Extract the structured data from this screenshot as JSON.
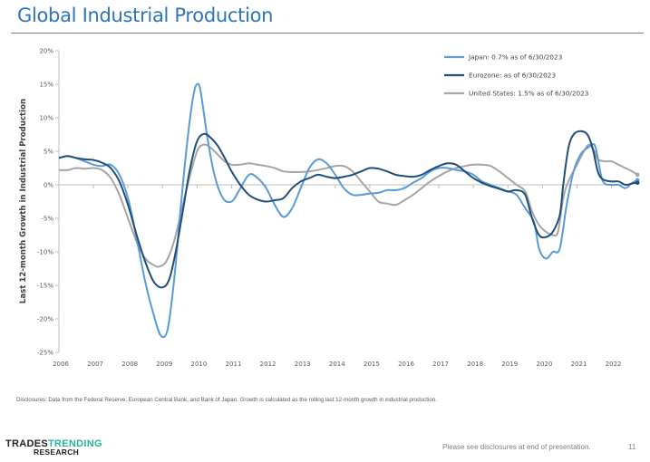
{
  "page": {
    "title": "Global Industrial Production",
    "disclosure": "Disclosures: Data from the Federal Reserve, European Central Bank, and Bank of Japan. Growth is calculated as the rolling last 12-month growth in industrial production.",
    "footer": "Please see disclosures at end of presentation.",
    "page_number": "11",
    "logo": {
      "part1": "TRADES",
      "part2": "TRENDING",
      "part3": "RESEARCH"
    }
  },
  "chart_data": {
    "type": "line",
    "title": "Global Industrial Production",
    "xlabel": "",
    "ylabel": "Last 12-month Growth in Industrial Production",
    "ylim": [
      -25,
      20
    ],
    "xlim": [
      2006,
      2022.5
    ],
    "yticks": [
      20,
      15,
      10,
      5,
      0,
      -5,
      -10,
      -15,
      -20,
      -25
    ],
    "ytick_labels": [
      "20%",
      "15%",
      "10%",
      "5%",
      "0%",
      "-5%",
      "-10%",
      "-15%",
      "-20%",
      "-25%"
    ],
    "xtick_labels": [
      "2006",
      "2007",
      "2008",
      "2009",
      "2010",
      "2011",
      "2012",
      "2013",
      "2014",
      "2015",
      "2016",
      "2017",
      "2018",
      "2019",
      "2020",
      "2021",
      "2022"
    ],
    "legend_position": "top-right",
    "grid": false,
    "series": [
      {
        "name": "Japan: 0.7% as of 6/30/2023",
        "color": "#5b9bd5",
        "points": [
          [
            2006,
            4.0
          ],
          [
            2006.25,
            4.3
          ],
          [
            2006.5,
            4.0
          ],
          [
            2006.75,
            3.5
          ],
          [
            2007,
            3.0
          ],
          [
            2007.25,
            2.8
          ],
          [
            2007.5,
            3.0
          ],
          [
            2007.75,
            1.5
          ],
          [
            2008,
            -2.0
          ],
          [
            2008.25,
            -8.0
          ],
          [
            2008.5,
            -14.5
          ],
          [
            2008.75,
            -19.5
          ],
          [
            2008.95,
            -22.5
          ],
          [
            2009.15,
            -21.5
          ],
          [
            2009.35,
            -13.5
          ],
          [
            2009.55,
            -2.0
          ],
          [
            2009.75,
            8.0
          ],
          [
            2009.9,
            13.5
          ],
          [
            2010.0,
            15.0
          ],
          [
            2010.1,
            14.0
          ],
          [
            2010.3,
            7.0
          ],
          [
            2010.5,
            1.5
          ],
          [
            2010.75,
            -2.0
          ],
          [
            2011.0,
            -2.5
          ],
          [
            2011.2,
            -1.0
          ],
          [
            2011.5,
            1.5
          ],
          [
            2011.75,
            1.0
          ],
          [
            2012.0,
            -0.5
          ],
          [
            2012.25,
            -3.0
          ],
          [
            2012.5,
            -4.8
          ],
          [
            2012.75,
            -3.5
          ],
          [
            2013.0,
            -0.5
          ],
          [
            2013.25,
            2.5
          ],
          [
            2013.5,
            3.8
          ],
          [
            2013.75,
            3.2
          ],
          [
            2014.0,
            1.5
          ],
          [
            2014.25,
            -0.5
          ],
          [
            2014.5,
            -1.5
          ],
          [
            2014.75,
            -1.5
          ],
          [
            2015.0,
            -1.3
          ],
          [
            2015.25,
            -1.2
          ],
          [
            2015.5,
            -0.8
          ],
          [
            2015.75,
            -0.8
          ],
          [
            2016.0,
            -0.5
          ],
          [
            2016.25,
            0.3
          ],
          [
            2016.5,
            1.0
          ],
          [
            2016.75,
            2.0
          ],
          [
            2017.0,
            2.5
          ],
          [
            2017.25,
            2.5
          ],
          [
            2017.5,
            2.2
          ],
          [
            2017.75,
            2.0
          ],
          [
            2018.0,
            1.5
          ],
          [
            2018.25,
            0.5
          ],
          [
            2018.5,
            0.0
          ],
          [
            2018.75,
            -0.5
          ],
          [
            2019.0,
            -1.0
          ],
          [
            2019.25,
            -1.5
          ],
          [
            2019.5,
            -3.5
          ],
          [
            2019.75,
            -5.5
          ],
          [
            2019.9,
            -9.5
          ],
          [
            2020.1,
            -11.0
          ],
          [
            2020.3,
            -10.0
          ],
          [
            2020.5,
            -9.5
          ],
          [
            2020.7,
            -3.0
          ],
          [
            2020.9,
            2.0
          ],
          [
            2021.1,
            4.5
          ],
          [
            2021.3,
            5.5
          ],
          [
            2021.5,
            6.0
          ],
          [
            2021.6,
            4.0
          ],
          [
            2021.75,
            0.5
          ],
          [
            2022.0,
            0.0
          ],
          [
            2022.2,
            0.0
          ],
          [
            2022.4,
            -0.5
          ],
          [
            2022.6,
            0.3
          ],
          [
            2022.75,
            0.7
          ]
        ]
      },
      {
        "name": "Eurozone:  as of 6/30/2023",
        "color": "#1f4e79",
        "points": [
          [
            2006,
            4.0
          ],
          [
            2006.25,
            4.3
          ],
          [
            2006.5,
            4.0
          ],
          [
            2006.75,
            3.8
          ],
          [
            2007,
            3.7
          ],
          [
            2007.25,
            3.3
          ],
          [
            2007.5,
            2.5
          ],
          [
            2007.75,
            0.5
          ],
          [
            2008,
            -3.0
          ],
          [
            2008.25,
            -7.5
          ],
          [
            2008.5,
            -11.5
          ],
          [
            2008.75,
            -14.5
          ],
          [
            2009.0,
            -15.3
          ],
          [
            2009.2,
            -14.0
          ],
          [
            2009.4,
            -9.5
          ],
          [
            2009.6,
            -3.5
          ],
          [
            2009.8,
            2.5
          ],
          [
            2010.0,
            6.5
          ],
          [
            2010.2,
            7.6
          ],
          [
            2010.4,
            7.0
          ],
          [
            2010.6,
            5.8
          ],
          [
            2010.8,
            4.0
          ],
          [
            2011.0,
            2.0
          ],
          [
            2011.25,
            0.0
          ],
          [
            2011.5,
            -1.5
          ],
          [
            2011.75,
            -2.2
          ],
          [
            2012.0,
            -2.5
          ],
          [
            2012.25,
            -2.3
          ],
          [
            2012.5,
            -2.0
          ],
          [
            2012.75,
            -0.5
          ],
          [
            2013.0,
            0.5
          ],
          [
            2013.25,
            1.0
          ],
          [
            2013.5,
            1.5
          ],
          [
            2013.75,
            1.2
          ],
          [
            2014.0,
            1.0
          ],
          [
            2014.25,
            1.2
          ],
          [
            2014.5,
            1.5
          ],
          [
            2014.75,
            2.0
          ],
          [
            2015.0,
            2.5
          ],
          [
            2015.25,
            2.4
          ],
          [
            2015.5,
            2.0
          ],
          [
            2015.75,
            1.5
          ],
          [
            2016.0,
            1.3
          ],
          [
            2016.25,
            1.2
          ],
          [
            2016.5,
            1.5
          ],
          [
            2016.75,
            2.2
          ],
          [
            2017.0,
            2.8
          ],
          [
            2017.25,
            3.2
          ],
          [
            2017.5,
            3.0
          ],
          [
            2017.75,
            2.0
          ],
          [
            2018.0,
            1.0
          ],
          [
            2018.25,
            0.3
          ],
          [
            2018.5,
            -0.2
          ],
          [
            2018.75,
            -0.6
          ],
          [
            2019.0,
            -1.0
          ],
          [
            2019.25,
            -0.8
          ],
          [
            2019.5,
            -1.5
          ],
          [
            2019.7,
            -5.0
          ],
          [
            2019.9,
            -7.5
          ],
          [
            2020.1,
            -7.8
          ],
          [
            2020.3,
            -7.0
          ],
          [
            2020.5,
            -4.5
          ],
          [
            2020.6,
            0.0
          ],
          [
            2020.75,
            5.5
          ],
          [
            2020.9,
            7.5
          ],
          [
            2021.1,
            8.0
          ],
          [
            2021.3,
            7.5
          ],
          [
            2021.45,
            5.5
          ],
          [
            2021.6,
            2.0
          ],
          [
            2021.75,
            0.8
          ],
          [
            2022.0,
            0.5
          ],
          [
            2022.2,
            0.5
          ],
          [
            2022.4,
            0.0
          ],
          [
            2022.6,
            0.2
          ],
          [
            2022.75,
            0.3
          ]
        ]
      },
      {
        "name": "United States: 1.5% as of 6/30/2023",
        "color": "#a5a5a5",
        "points": [
          [
            2006,
            2.2
          ],
          [
            2006.25,
            2.2
          ],
          [
            2006.5,
            2.5
          ],
          [
            2006.75,
            2.4
          ],
          [
            2007,
            2.5
          ],
          [
            2007.25,
            2.2
          ],
          [
            2007.5,
            1.0
          ],
          [
            2007.75,
            -1.5
          ],
          [
            2008,
            -5.0
          ],
          [
            2008.25,
            -8.5
          ],
          [
            2008.5,
            -11.0
          ],
          [
            2008.75,
            -12.0
          ],
          [
            2008.9,
            -12.2
          ],
          [
            2009.1,
            -11.5
          ],
          [
            2009.3,
            -9.0
          ],
          [
            2009.5,
            -5.0
          ],
          [
            2009.75,
            0.5
          ],
          [
            2010.0,
            5.0
          ],
          [
            2010.2,
            6.0
          ],
          [
            2010.4,
            5.5
          ],
          [
            2010.6,
            4.5
          ],
          [
            2010.8,
            3.5
          ],
          [
            2011.0,
            3.0
          ],
          [
            2011.25,
            3.0
          ],
          [
            2011.5,
            3.2
          ],
          [
            2011.75,
            3.0
          ],
          [
            2012.0,
            2.8
          ],
          [
            2012.25,
            2.5
          ],
          [
            2012.5,
            2.0
          ],
          [
            2012.75,
            1.9
          ],
          [
            2013.0,
            1.9
          ],
          [
            2013.25,
            2.0
          ],
          [
            2013.5,
            2.2
          ],
          [
            2013.75,
            2.5
          ],
          [
            2014.0,
            2.8
          ],
          [
            2014.25,
            2.8
          ],
          [
            2014.5,
            2.0
          ],
          [
            2014.75,
            0.5
          ],
          [
            2015.0,
            -1.0
          ],
          [
            2015.25,
            -2.5
          ],
          [
            2015.5,
            -2.8
          ],
          [
            2015.75,
            -3.0
          ],
          [
            2016.0,
            -2.3
          ],
          [
            2016.25,
            -1.5
          ],
          [
            2016.5,
            -0.5
          ],
          [
            2016.75,
            0.5
          ],
          [
            2017.0,
            1.3
          ],
          [
            2017.25,
            2.0
          ],
          [
            2017.5,
            2.5
          ],
          [
            2017.75,
            2.8
          ],
          [
            2018.0,
            3.0
          ],
          [
            2018.25,
            3.0
          ],
          [
            2018.5,
            2.8
          ],
          [
            2018.75,
            2.0
          ],
          [
            2019.0,
            1.0
          ],
          [
            2019.25,
            0.0
          ],
          [
            2019.5,
            -1.0
          ],
          [
            2019.7,
            -4.0
          ],
          [
            2019.9,
            -6.0
          ],
          [
            2020.1,
            -7.0
          ],
          [
            2020.3,
            -7.5
          ],
          [
            2020.45,
            -7.0
          ],
          [
            2020.6,
            -2.0
          ],
          [
            2020.75,
            0.5
          ],
          [
            2021.0,
            3.0
          ],
          [
            2021.2,
            5.0
          ],
          [
            2021.35,
            6.0
          ],
          [
            2021.5,
            5.0
          ],
          [
            2021.6,
            3.8
          ],
          [
            2021.8,
            3.5
          ],
          [
            2022.0,
            3.5
          ],
          [
            2022.2,
            3.0
          ],
          [
            2022.4,
            2.5
          ],
          [
            2022.6,
            2.0
          ],
          [
            2022.75,
            1.5
          ]
        ]
      }
    ]
  }
}
